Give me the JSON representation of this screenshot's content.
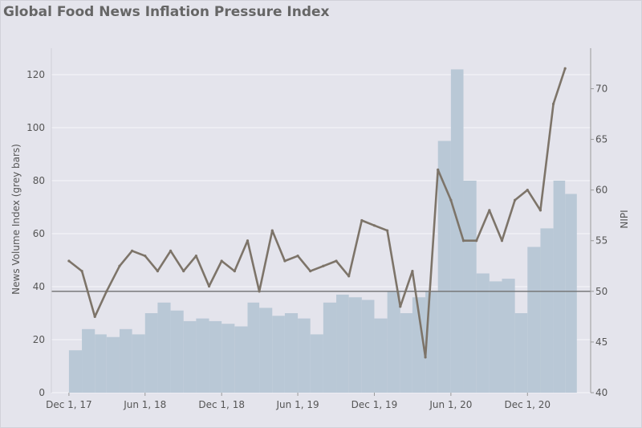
{
  "chart_data": {
    "type": "bar+line",
    "title": "Global Food News Inflation Pressure Index",
    "ylabel_left": "News Volume Index (grey bars)",
    "ylabel_right": "NIPI",
    "ylim_left": [
      0,
      130
    ],
    "ylim_right": [
      40,
      74
    ],
    "yticks_left": [
      0,
      20,
      40,
      60,
      80,
      100,
      120
    ],
    "yticks_right": [
      40,
      45,
      50,
      55,
      60,
      65,
      70
    ],
    "xticks": [
      "Dec 1, 17",
      "Jun 1, 18",
      "Dec 1, 18",
      "Jun 1, 19",
      "Dec 1, 19",
      "Jun 1, 20",
      "Dec 1, 20"
    ],
    "reference_line": {
      "axis": "right",
      "value": 50
    },
    "colors": {
      "bars": "#b9c8d6",
      "line": "#7d7469",
      "reference": "#707070",
      "text": "#555555"
    },
    "series": [
      {
        "name": "News Volume Index (grey bars)",
        "axis": "left",
        "x": [
          "2017-12-01",
          "2018-01-01",
          "2018-02-01",
          "2018-03-01",
          "2018-04-01",
          "2018-05-01",
          "2018-06-01",
          "2018-07-01",
          "2018-08-01",
          "2018-09-01",
          "2018-10-01",
          "2018-11-01",
          "2018-12-01",
          "2019-01-01",
          "2019-02-01",
          "2019-03-01",
          "2019-04-01",
          "2019-05-01",
          "2019-06-01",
          "2019-07-01",
          "2019-08-01",
          "2019-09-01",
          "2019-10-01",
          "2019-11-01",
          "2019-12-01",
          "2020-01-01",
          "2020-02-01",
          "2020-03-01",
          "2020-04-01",
          "2020-05-01",
          "2020-06-01",
          "2020-07-01",
          "2020-08-01",
          "2020-09-01",
          "2020-10-01",
          "2020-11-01",
          "2020-12-01",
          "2021-01-01",
          "2021-02-01",
          "2021-03-01"
        ],
        "values": [
          16,
          24,
          22,
          21,
          24,
          22,
          30,
          34,
          31,
          27,
          28,
          27,
          26,
          25,
          34,
          32,
          29,
          30,
          28,
          22,
          34,
          37,
          36,
          35,
          28,
          38,
          30,
          36,
          38,
          95,
          122,
          80,
          45,
          42,
          43,
          30,
          55,
          62,
          80,
          75
        ]
      },
      {
        "name": "NIPI",
        "axis": "right",
        "x": [
          "2017-12-01",
          "2018-01-01",
          "2018-02-01",
          "2018-03-01",
          "2018-04-01",
          "2018-05-01",
          "2018-06-01",
          "2018-07-01",
          "2018-08-01",
          "2018-09-01",
          "2018-10-01",
          "2018-11-01",
          "2018-12-01",
          "2019-01-01",
          "2019-02-01",
          "2019-03-01",
          "2019-04-01",
          "2019-05-01",
          "2019-06-01",
          "2019-07-01",
          "2019-08-01",
          "2019-09-01",
          "2019-10-01",
          "2019-11-01",
          "2019-12-01",
          "2020-01-01",
          "2020-02-01",
          "2020-03-01",
          "2020-04-01",
          "2020-05-01",
          "2020-06-01",
          "2020-07-01",
          "2020-08-01",
          "2020-09-01",
          "2020-10-01",
          "2020-11-01",
          "2020-12-01",
          "2021-01-01",
          "2021-02-01",
          "2021-03-01"
        ],
        "values": [
          53,
          52,
          47.5,
          50,
          52.5,
          54,
          53.5,
          52,
          54,
          52,
          53.5,
          50.5,
          53,
          52,
          55,
          50,
          56,
          53,
          53.5,
          52,
          52.5,
          53,
          51.5,
          57,
          56.5,
          56,
          48.5,
          52,
          43.5,
          62,
          59,
          55,
          55,
          58,
          55,
          59,
          60,
          58,
          68.5,
          72
        ]
      }
    ]
  }
}
